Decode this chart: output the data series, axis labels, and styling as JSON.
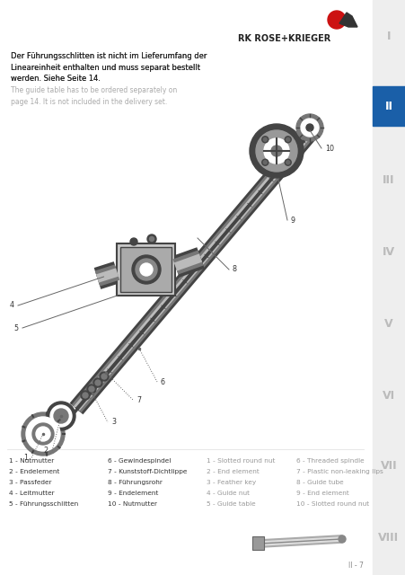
{
  "bg_color": "#ffffff",
  "sidebar_color": "#f0f0f0",
  "title_de_bold": "Der Führungsschlitten ist nicht im Lieferumfang der\nLineareinheit enthalten und muss separat bestellt\nwerden. Siehe Seite 14.",
  "title_en": "The guide table has to be ordered separately on\npage 14. It is not included in the delivery set.",
  "logo_text": "RK ROSE+KRIEGER",
  "tab_labels": [
    "I",
    "II",
    "III",
    "IV",
    "V",
    "VI",
    "VII",
    "VIII"
  ],
  "tab_active": 1,
  "tab_active_color": "#1a5fa8",
  "tab_inactive_color": "#bbbbbb",
  "tab_text_color_active": "#ffffff",
  "parts_de": [
    "1 - Nutmutter",
    "2 - Endelement",
    "3 - Passfeder",
    "4 - Leitmutter",
    "5 - Führungsschlitten"
  ],
  "parts_de2": [
    "6 - Gewindespindel",
    "7 - Kunststoff-Dichtlippe",
    "8 - Führungsrohr",
    "9 - Endelement",
    "10 - Nutmutter"
  ],
  "parts_en": [
    "1 - Slotted round nut",
    "2 - End element",
    "3 - Feather key",
    "4 - Guide nut",
    "5 - Guide table"
  ],
  "parts_en2": [
    "6 - Threaded spindle",
    "7 - Plastic non-leaking lips",
    "8 - Guide tube",
    "9 - End element",
    "10 - Slotted round nut"
  ],
  "page_number": "II - 7"
}
